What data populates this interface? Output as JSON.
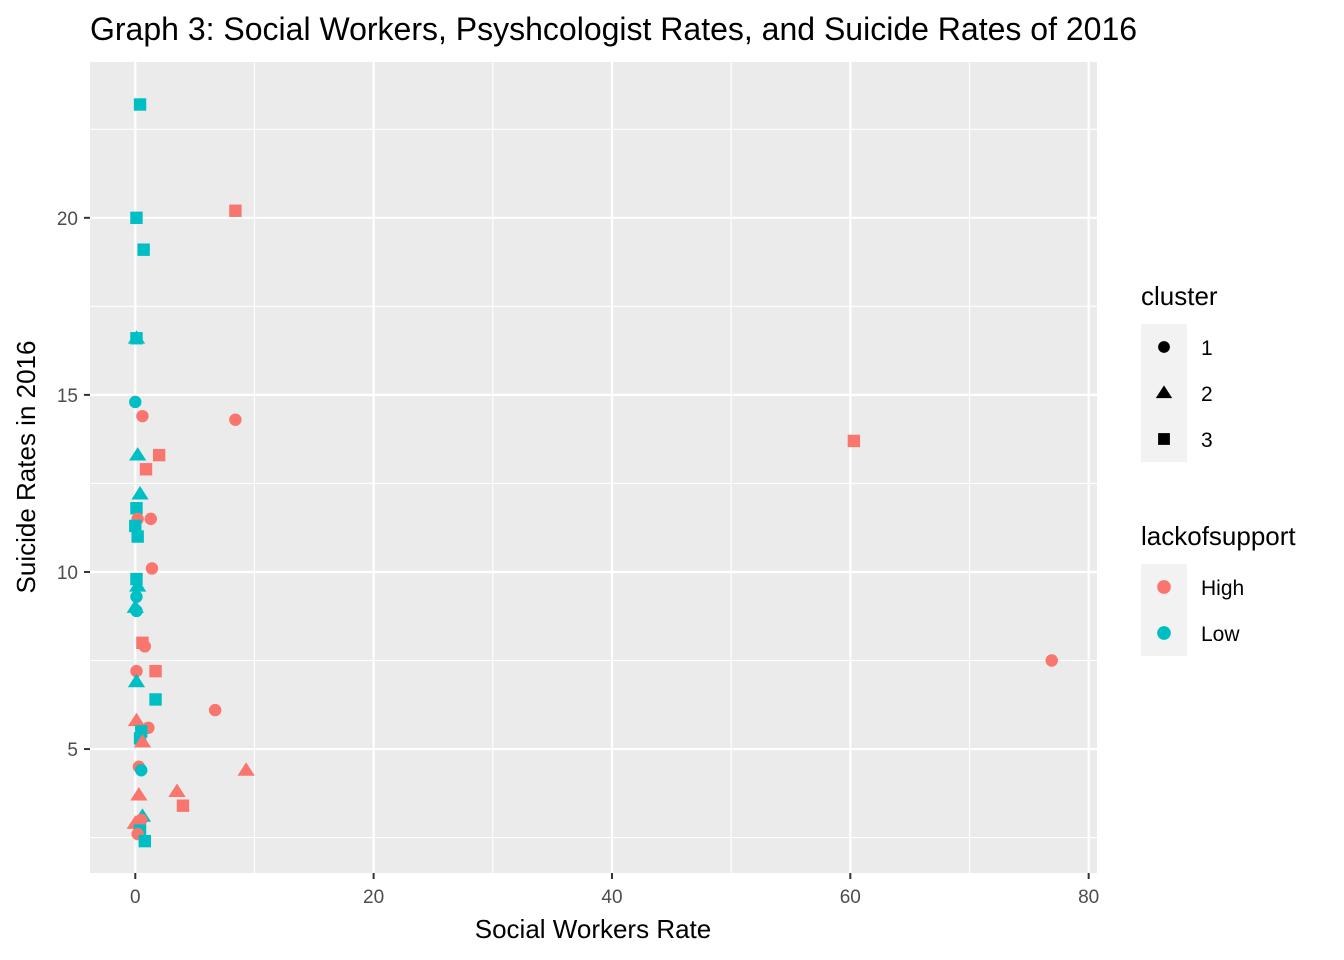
{
  "chart_data": {
    "type": "scatter",
    "title": "Graph 3: Social Workers, Psyshcologist Rates, and Suicide Rates of 2016",
    "xlabel": "Social Workers Rate",
    "ylabel": "Suicide Rates in 2016",
    "xlim": [
      -3.8,
      80.7
    ],
    "ylim": [
      1.5,
      24.4
    ],
    "x_ticks": [
      0,
      20,
      40,
      60,
      80
    ],
    "y_ticks": [
      5,
      10,
      15,
      20
    ],
    "x_tick_labels": [
      "0",
      "20",
      "40",
      "60",
      "80"
    ],
    "y_tick_labels": [
      "5",
      "10",
      "15",
      "20"
    ],
    "grid": true,
    "colors": {
      "High": "#F8766D",
      "Low": "#00BFC4",
      "panel": "#EBEBEB",
      "grid": "#FFFFFF"
    },
    "legend": [
      {
        "title": "cluster",
        "entries": [
          {
            "label": "1",
            "shape": "circle"
          },
          {
            "label": "2",
            "shape": "triangle"
          },
          {
            "label": "3",
            "shape": "square"
          }
        ]
      },
      {
        "title": "lackofsupport",
        "entries": [
          {
            "label": "High",
            "color": "#F8766D"
          },
          {
            "label": "Low",
            "color": "#00BFC4"
          }
        ]
      }
    ],
    "legend_position": "right",
    "points": [
      {
        "x": 0.4,
        "y": 23.2,
        "cluster": "3",
        "lackofsupport": "Low"
      },
      {
        "x": 0.1,
        "y": 20.0,
        "cluster": "3",
        "lackofsupport": "Low"
      },
      {
        "x": 0.7,
        "y": 19.1,
        "cluster": "3",
        "lackofsupport": "Low"
      },
      {
        "x": 8.4,
        "y": 20.2,
        "cluster": "3",
        "lackofsupport": "High"
      },
      {
        "x": 0.1,
        "y": 16.6,
        "cluster": "2",
        "lackofsupport": "Low"
      },
      {
        "x": 0.1,
        "y": 16.6,
        "cluster": "3",
        "lackofsupport": "Low"
      },
      {
        "x": 0.0,
        "y": 14.8,
        "cluster": "1",
        "lackofsupport": "Low"
      },
      {
        "x": 0.6,
        "y": 14.4,
        "cluster": "1",
        "lackofsupport": "High"
      },
      {
        "x": 8.4,
        "y": 14.3,
        "cluster": "1",
        "lackofsupport": "High"
      },
      {
        "x": 0.2,
        "y": 13.3,
        "cluster": "2",
        "lackofsupport": "Low"
      },
      {
        "x": 2.0,
        "y": 13.3,
        "cluster": "3",
        "lackofsupport": "High"
      },
      {
        "x": 0.9,
        "y": 12.9,
        "cluster": "3",
        "lackofsupport": "High"
      },
      {
        "x": 0.4,
        "y": 12.2,
        "cluster": "2",
        "lackofsupport": "Low"
      },
      {
        "x": 0.1,
        "y": 11.8,
        "cluster": "3",
        "lackofsupport": "Low"
      },
      {
        "x": 0.2,
        "y": 11.5,
        "cluster": "1",
        "lackofsupport": "High"
      },
      {
        "x": 1.3,
        "y": 11.5,
        "cluster": "1",
        "lackofsupport": "High"
      },
      {
        "x": 0.0,
        "y": 11.3,
        "cluster": "3",
        "lackofsupport": "Low"
      },
      {
        "x": 0.2,
        "y": 11.0,
        "cluster": "3",
        "lackofsupport": "Low"
      },
      {
        "x": 1.4,
        "y": 10.1,
        "cluster": "1",
        "lackofsupport": "High"
      },
      {
        "x": 0.1,
        "y": 9.8,
        "cluster": "3",
        "lackofsupport": "Low"
      },
      {
        "x": 0.2,
        "y": 9.6,
        "cluster": "2",
        "lackofsupport": "Low"
      },
      {
        "x": 0.1,
        "y": 9.3,
        "cluster": "1",
        "lackofsupport": "Low"
      },
      {
        "x": 0.0,
        "y": 9.0,
        "cluster": "2",
        "lackofsupport": "Low"
      },
      {
        "x": 0.1,
        "y": 8.9,
        "cluster": "1",
        "lackofsupport": "Low"
      },
      {
        "x": 0.6,
        "y": 8.0,
        "cluster": "3",
        "lackofsupport": "High"
      },
      {
        "x": 0.8,
        "y": 7.9,
        "cluster": "1",
        "lackofsupport": "High"
      },
      {
        "x": 0.1,
        "y": 7.2,
        "cluster": "1",
        "lackofsupport": "High"
      },
      {
        "x": 1.7,
        "y": 7.2,
        "cluster": "3",
        "lackofsupport": "High"
      },
      {
        "x": 0.1,
        "y": 6.9,
        "cluster": "2",
        "lackofsupport": "Low"
      },
      {
        "x": 1.7,
        "y": 6.4,
        "cluster": "3",
        "lackofsupport": "Low"
      },
      {
        "x": 6.7,
        "y": 6.1,
        "cluster": "1",
        "lackofsupport": "High"
      },
      {
        "x": 0.1,
        "y": 5.8,
        "cluster": "2",
        "lackofsupport": "High"
      },
      {
        "x": 1.1,
        "y": 5.6,
        "cluster": "1",
        "lackofsupport": "High"
      },
      {
        "x": 0.5,
        "y": 5.5,
        "cluster": "3",
        "lackofsupport": "Low"
      },
      {
        "x": 0.4,
        "y": 5.3,
        "cluster": "3",
        "lackofsupport": "Low"
      },
      {
        "x": 0.6,
        "y": 5.2,
        "cluster": "2",
        "lackofsupport": "High"
      },
      {
        "x": 0.3,
        "y": 4.5,
        "cluster": "1",
        "lackofsupport": "High"
      },
      {
        "x": 0.5,
        "y": 4.4,
        "cluster": "1",
        "lackofsupport": "Low"
      },
      {
        "x": 9.3,
        "y": 4.4,
        "cluster": "2",
        "lackofsupport": "High"
      },
      {
        "x": 3.5,
        "y": 3.8,
        "cluster": "2",
        "lackofsupport": "High"
      },
      {
        "x": 0.3,
        "y": 3.7,
        "cluster": "2",
        "lackofsupport": "High"
      },
      {
        "x": 4.0,
        "y": 3.4,
        "cluster": "3",
        "lackofsupport": "High"
      },
      {
        "x": 0.6,
        "y": 3.1,
        "cluster": "2",
        "lackofsupport": "Low"
      },
      {
        "x": 0.5,
        "y": 3.0,
        "cluster": "1",
        "lackofsupport": "High"
      },
      {
        "x": 0.0,
        "y": 2.9,
        "cluster": "2",
        "lackofsupport": "High"
      },
      {
        "x": 0.4,
        "y": 2.7,
        "cluster": "3",
        "lackofsupport": "Low"
      },
      {
        "x": 0.2,
        "y": 2.6,
        "cluster": "1",
        "lackofsupport": "High"
      },
      {
        "x": 0.8,
        "y": 2.4,
        "cluster": "3",
        "lackofsupport": "Low"
      },
      {
        "x": 60.3,
        "y": 13.7,
        "cluster": "3",
        "lackofsupport": "High"
      },
      {
        "x": 76.9,
        "y": 7.5,
        "cluster": "1",
        "lackofsupport": "High"
      }
    ]
  }
}
